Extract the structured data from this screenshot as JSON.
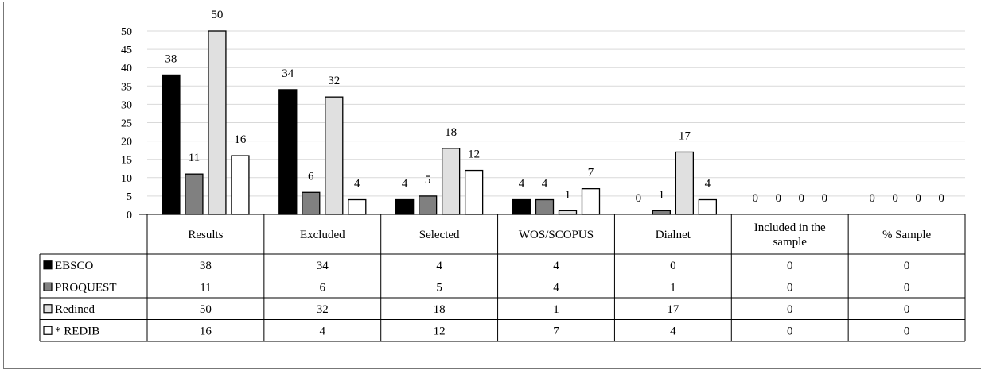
{
  "chart_data": {
    "type": "bar",
    "title": "",
    "xlabel": "",
    "ylabel": "",
    "ylim": [
      0,
      50
    ],
    "yticks": [
      0,
      5,
      10,
      15,
      20,
      25,
      30,
      35,
      40,
      45,
      50
    ],
    "grid": true,
    "legend": "data-table-left",
    "categories": [
      "Results",
      "Excluded",
      "Selected",
      "WOS/SCOPUS",
      "Dialnet",
      "Included in the sample",
      "% Sample"
    ],
    "series": [
      {
        "name": "EBSCO",
        "color": "#000000",
        "values": [
          38,
          34,
          4,
          4,
          0,
          0,
          0
        ]
      },
      {
        "name": "PROQUEST",
        "color": "#808080",
        "values": [
          11,
          6,
          5,
          4,
          1,
          0,
          0
        ]
      },
      {
        "name": "Redined",
        "color": "#e0e0e0",
        "values": [
          50,
          32,
          18,
          1,
          17,
          0,
          0
        ]
      },
      {
        "name": "* REDIB",
        "color": "#ffffff",
        "values": [
          16,
          4,
          12,
          7,
          4,
          0,
          0
        ]
      }
    ]
  }
}
